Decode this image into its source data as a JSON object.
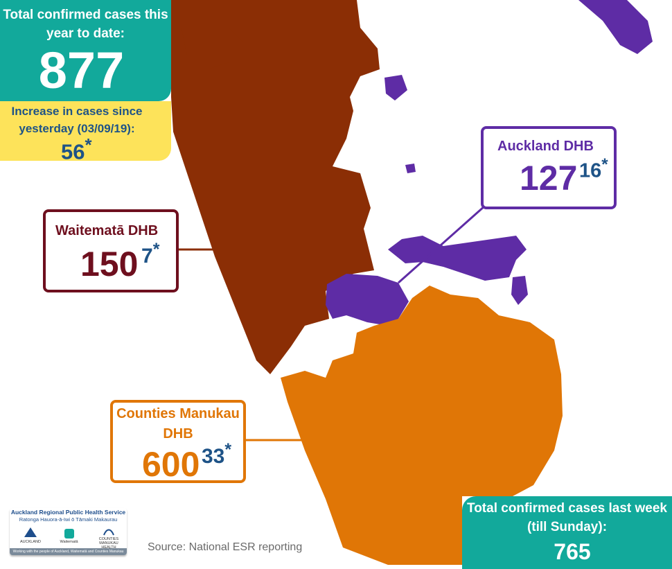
{
  "total_year": {
    "label": "Total confirmed cases this year to date:",
    "value": "877"
  },
  "increase": {
    "label": "Increase in cases since yesterday (03/09/19):",
    "value": "56",
    "marker": "*"
  },
  "dhbs": {
    "auckland": {
      "name": "Auckland DHB",
      "count": "127",
      "increase": "16",
      "marker": "*",
      "color": "#5e2ca5"
    },
    "waitemata": {
      "name": "Waitematā DHB",
      "count": "150",
      "increase": "7",
      "marker": "*",
      "color": "#8b2e05"
    },
    "counties_manukau": {
      "name": "Counties Manukau DHB",
      "count": "600",
      "increase": "33",
      "marker": "*",
      "color": "#e07606"
    }
  },
  "last_week": {
    "label": "Total confirmed cases last week (till Sunday):",
    "value": "765"
  },
  "source": "Source: National ESR reporting",
  "logo": {
    "title": "Auckland Regional Public Health Service",
    "subtitle": "Ratonga Hauora-ā-Iwi ō Tāmaki Makaurau",
    "partners": [
      "AUCKLAND",
      "Waitematā",
      "COUNTIES MANUKAU HEALTH"
    ],
    "strap": "Working with the people of Auckland, Waitematā and Counties Manukau"
  },
  "colors": {
    "teal": "#12a99b",
    "yellow": "#fde35a",
    "navy": "#1e5387",
    "waitemata_border": "#6e0f1e"
  }
}
